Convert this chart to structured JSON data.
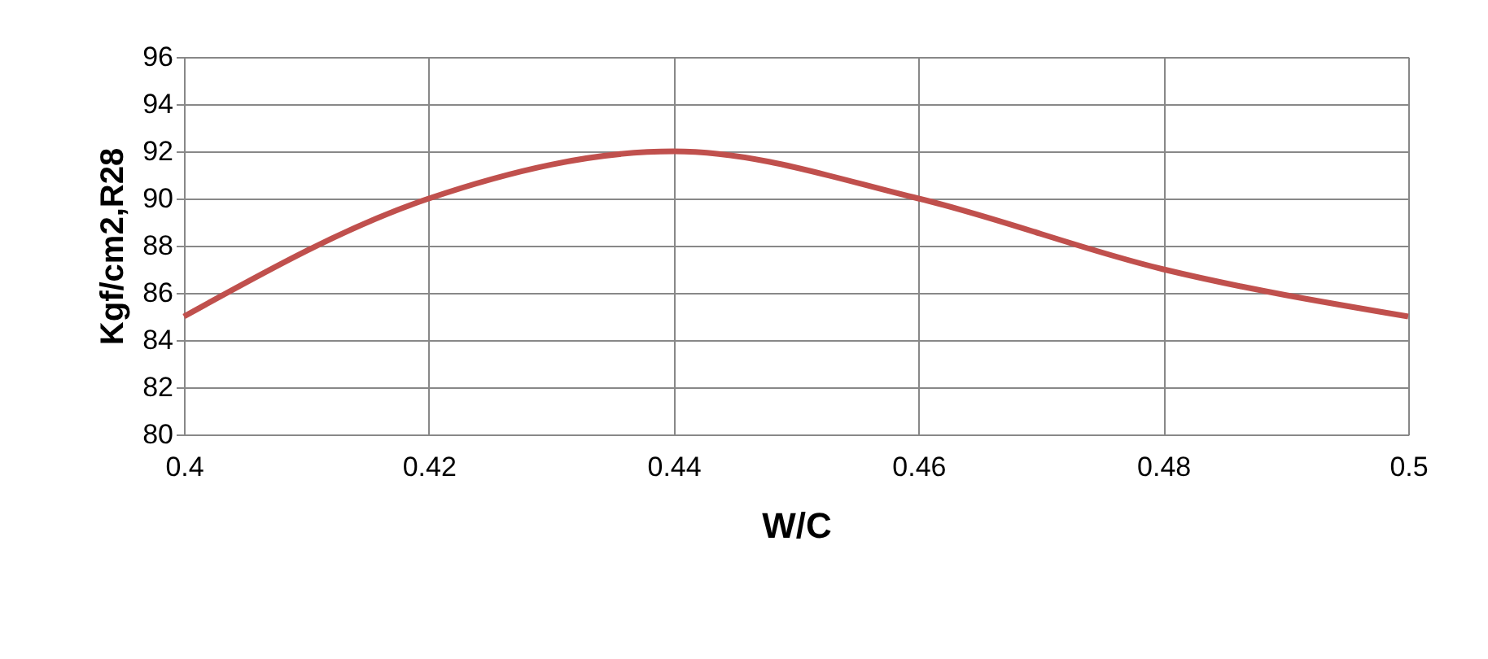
{
  "chart_data": {
    "type": "line",
    "xlabel": "W/C",
    "ylabel": "Kgf/cm2,R28",
    "x": [
      0.4,
      0.42,
      0.44,
      0.46,
      0.48,
      0.5
    ],
    "series": [
      {
        "color": "#c0504d",
        "values": [
          85,
          90,
          92,
          90,
          87,
          85
        ]
      }
    ],
    "xlim": [
      0.4,
      0.5
    ],
    "xticks": [
      0.4,
      0.42,
      0.44,
      0.46,
      0.48,
      0.5
    ],
    "ylim": [
      80,
      96
    ],
    "yticks": [
      80,
      82,
      84,
      86,
      88,
      90,
      92,
      94,
      96
    ],
    "grid": true,
    "marker": "none",
    "line_style": "solid"
  }
}
